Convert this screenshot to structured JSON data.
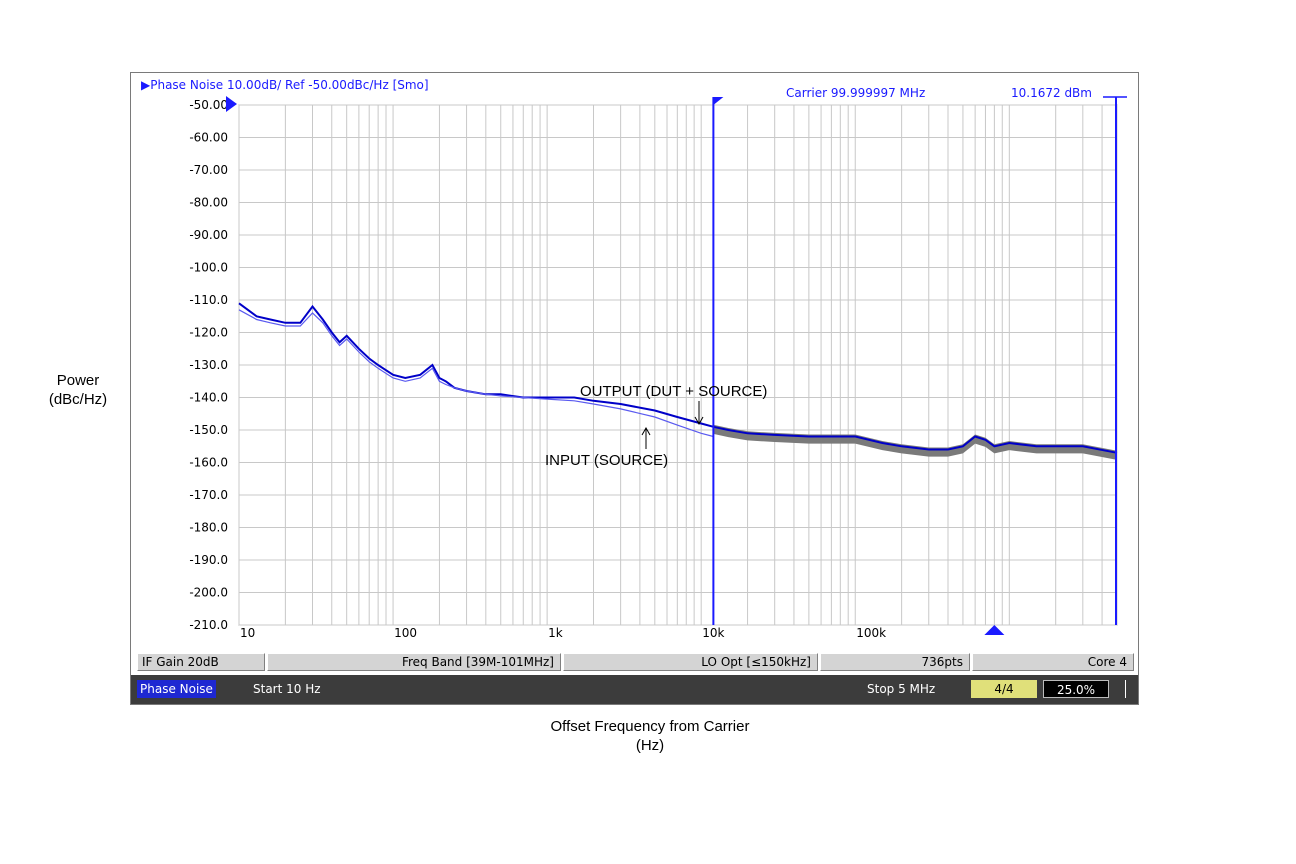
{
  "y_axis_label": [
    "Power",
    "(dBc/Hz)"
  ],
  "x_axis_label": [
    "Offset Frequency from Carrier",
    "(Hz)"
  ],
  "trace_header": "▶Phase Noise 10.00dB/ Ref -50.00dBc/Hz [Smo]",
  "carrier_text": "Carrier 99.999997 MHz",
  "carrier_power": "10.1672 dBm",
  "info_bar": {
    "if_gain": "IF Gain 20dB",
    "freq_band": "Freq Band [39M-101MHz]",
    "lo_opt": "LO Opt [≤150kHz]",
    "points": "736pts",
    "core": "Core 4"
  },
  "status_bar": {
    "mode": "Phase Noise",
    "start": "Start 10 Hz",
    "stop": "Stop 5 MHz",
    "avg": "4/4",
    "percent": "25.0%"
  },
  "colors": {
    "output_trace": "#0000c8",
    "input_trace": "#5a5af0",
    "uncertainty_band": "#7a7a7a",
    "marker": "#1a1aff",
    "grid": "#c8c8c8",
    "avg_badge": "#e0e07a",
    "mode_badge": "#1e28d2"
  },
  "chart_data": {
    "type": "line",
    "title": "",
    "xlabel": "Offset Frequency from Carrier (Hz)",
    "ylabel": "Power (dBc/Hz)",
    "xscale": "log",
    "xlim": [
      10,
      5000000
    ],
    "ylim": [
      -210,
      -50
    ],
    "x_tick_labels": [
      "10",
      "100",
      "1k",
      "10k",
      "100k"
    ],
    "x_tick_values": [
      10,
      100,
      1000,
      10000,
      100000
    ],
    "y_tick_labels": [
      "-50.00",
      "-60.00",
      "-70.00",
      "-80.00",
      "-90.00",
      "-100.0",
      "-110.0",
      "-120.0",
      "-130.0",
      "-140.0",
      "-150.0",
      "-160.0",
      "-170.0",
      "-180.0",
      "-190.0",
      "-200.0",
      "-210.0"
    ],
    "y_tick_values": [
      -50,
      -60,
      -70,
      -80,
      -90,
      -100,
      -110,
      -120,
      -130,
      -140,
      -150,
      -160,
      -170,
      -180,
      -190,
      -200,
      -210
    ],
    "grid": true,
    "marker_x": 12000,
    "series": [
      {
        "name": "OUTPUT (DUT + SOURCE)",
        "x": [
          10,
          13,
          16,
          20,
          25,
          30,
          35,
          40,
          45,
          50,
          60,
          70,
          80,
          100,
          120,
          150,
          180,
          200,
          220,
          250,
          300,
          400,
          500,
          700,
          1000,
          1500,
          2000,
          3000,
          5000,
          7000,
          10000,
          12000,
          15000,
          20000,
          30000,
          50000,
          70000,
          100000,
          150000,
          200000,
          300000,
          400000,
          500000,
          600000,
          700000,
          800000,
          1000000,
          1500000,
          2000000,
          3000000,
          5000000
        ],
        "y": [
          -111,
          -115,
          -116,
          -117,
          -117,
          -112,
          -116,
          -120,
          -123,
          -121,
          -125,
          -128,
          -130,
          -133,
          -134,
          -133,
          -130,
          -134,
          -135,
          -137,
          -138,
          -139,
          -139,
          -140,
          -140,
          -140,
          -141,
          -142,
          -144,
          -146,
          -148,
          -149,
          -150,
          -151,
          -151.5,
          -152,
          -152,
          -152,
          -154,
          -155,
          -156,
          -156,
          -155,
          -152,
          -153,
          -155,
          -154,
          -155,
          -155,
          -155,
          -157
        ]
      },
      {
        "name": "INPUT (SOURCE)",
        "x": [
          10,
          13,
          16,
          20,
          25,
          30,
          35,
          40,
          45,
          50,
          60,
          70,
          80,
          100,
          120,
          150,
          180,
          200,
          220,
          250,
          300,
          400,
          500,
          700,
          1000,
          1500,
          2000,
          3000,
          5000,
          7000,
          10000,
          12000
        ],
        "y": [
          -113,
          -116,
          -117,
          -118,
          -118,
          -114,
          -117,
          -121,
          -124,
          -122,
          -126,
          -129,
          -131,
          -134,
          -135,
          -134,
          -131,
          -135,
          -136,
          -137,
          -138,
          -139,
          -139.5,
          -140,
          -140.5,
          -141,
          -142,
          -143.5,
          -146,
          -148.5,
          -151,
          -152
        ]
      }
    ],
    "annotations": [
      {
        "text": "OUTPUT (DUT + SOURCE)",
        "x": 7000,
        "y": -143
      },
      {
        "text": "INPUT (SOURCE)",
        "x": 4500,
        "y": -154
      }
    ]
  }
}
